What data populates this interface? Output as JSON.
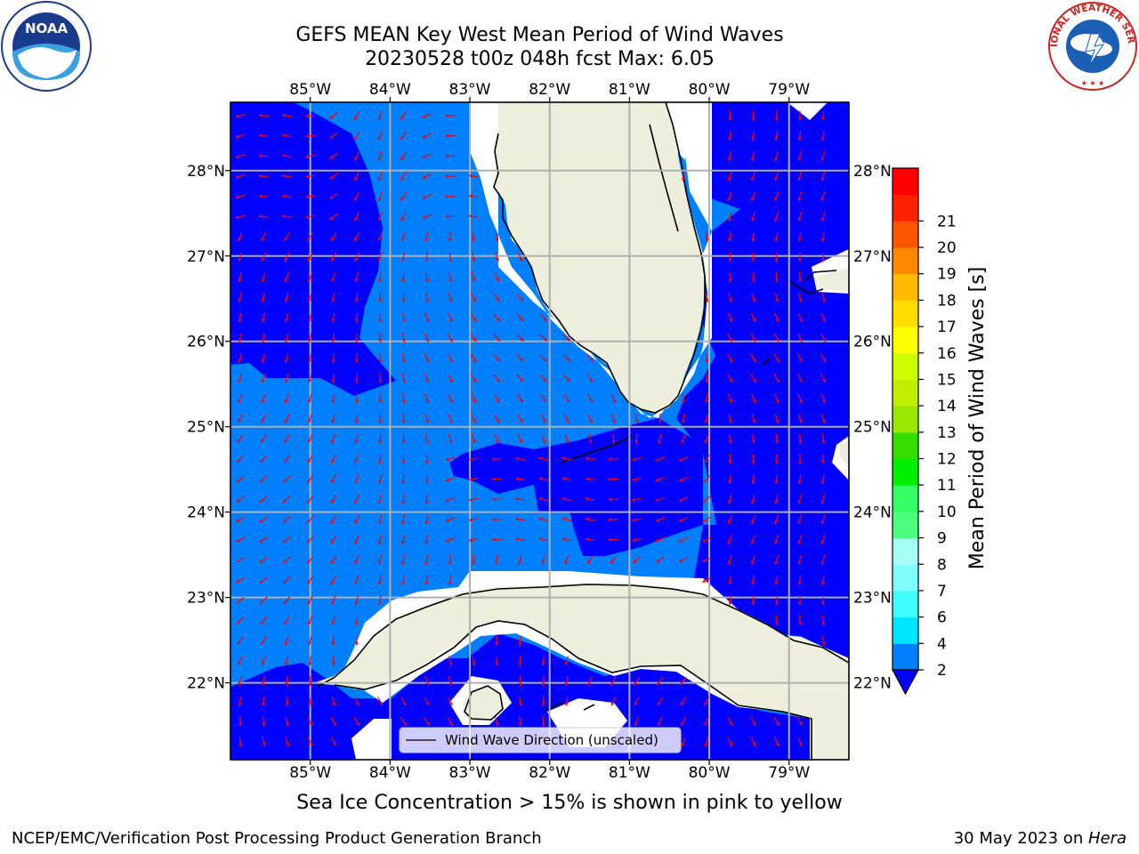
{
  "title": {
    "line1": "GEFS MEAN Key West Mean Period of Wind Waves",
    "line2": "20230528 t00z 048h fcst   Max: 6.05"
  },
  "map": {
    "lon_labels": [
      "85°W",
      "84°W",
      "83°W",
      "82°W",
      "81°W",
      "80°W",
      "79°W"
    ],
    "lat_labels": [
      "28°N",
      "27°N",
      "26°N",
      "25°N",
      "24°N",
      "23°N",
      "22°N"
    ],
    "lon_range": [
      -86.0,
      -78.25
    ],
    "lat_range": [
      21.1,
      28.8
    ],
    "ocean_color_2_4": "#0080ff",
    "ocean_color_below_2": "#0000ff",
    "land_color": "#eeeedc",
    "arrow_color": "#ff0000",
    "legend_label": "Wind Wave Direction (unscaled)"
  },
  "colorbar": {
    "label": "Mean Period of Wind Waves [s]",
    "ticks": [
      "2",
      "4",
      "6",
      "7",
      "8",
      "9",
      "10",
      "11",
      "12",
      "13",
      "14",
      "15",
      "16",
      "17",
      "18",
      "19",
      "20",
      "21"
    ],
    "colors": [
      "#0080ff",
      "#00e5ff",
      "#40ffff",
      "#80ffff",
      "#a6fff5",
      "#4cff7f",
      "#33ff66",
      "#00ee00",
      "#33dd00",
      "#99e600",
      "#bfef00",
      "#ccff00",
      "#ffff00",
      "#ffdd00",
      "#ffbb00",
      "#ff8800",
      "#ff5500",
      "#ff2200",
      "#ff0000"
    ],
    "under_color": "#0000ff"
  },
  "captions": {
    "ice": "Sea Ice Concentration > 15% is shown in pink to yellow",
    "footer_left": "NCEP/EMC/Verification Post Processing Product Generation Branch",
    "footer_right_date": "30 May 2023 on ",
    "footer_right_host": "Hera"
  },
  "logos": {
    "left": "NOAA",
    "right": "NATIONAL WEATHER SERVICE"
  }
}
